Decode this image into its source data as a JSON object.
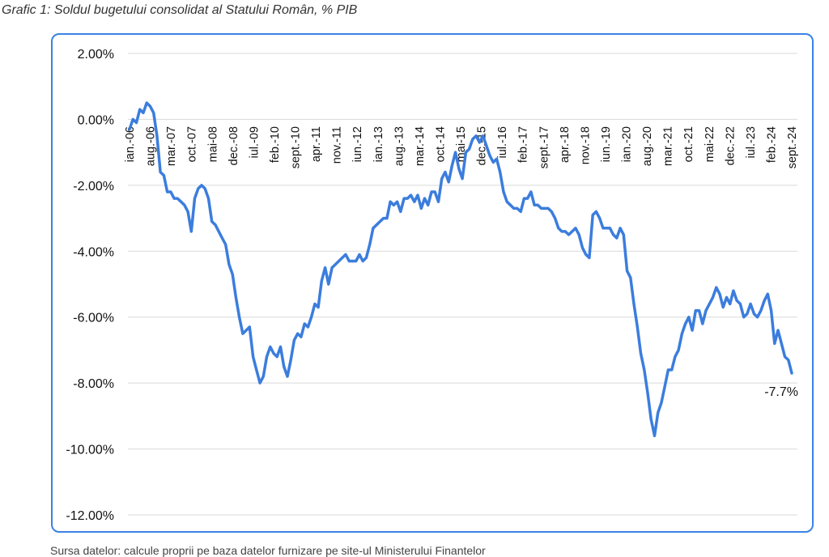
{
  "caption": "Grafic 1: Soldul bugetului consolidat al Statului Român, % PIB",
  "source": "Sursa datelor: calcule proprii pe baza datelor furnizare pe site-ul Ministerului Finantelor",
  "colors": {
    "line": "#3b7ddd",
    "frame": "#3b82e6",
    "grid": "#d9d9d9"
  },
  "chart_data": {
    "type": "line",
    "title": "Grafic 1: Soldul bugetului consolidat al Statului Român, % PIB",
    "ylim": [
      -12,
      2
    ],
    "yticks": [
      2,
      0,
      -2,
      -4,
      -6,
      -8,
      -10,
      -12
    ],
    "ytick_labels": [
      "2.00%",
      "0.00%",
      "-2.00%",
      "-4.00%",
      "-6.00%",
      "-8.00%",
      "-10.00%",
      "-12.00%"
    ],
    "grid": "horizontal",
    "x_tick_labels": [
      "ian.-06",
      "aug.-06",
      "mar.-07",
      "oct.-07",
      "mai-08",
      "dec.-08",
      "iul.-09",
      "feb.-10",
      "sept.-10",
      "apr.-11",
      "nov.-11",
      "iun.-12",
      "ian.-13",
      "aug.-13",
      "mar.-14",
      "oct.-14",
      "mai-15",
      "dec.-15",
      "iul.-16",
      "feb.-17",
      "sept.-17",
      "apr.-18",
      "nov.-18",
      "iun.-19",
      "ian.-20",
      "aug.-20",
      "mar.-21",
      "oct.-21",
      "mai-22",
      "dec.-22",
      "iul.-23",
      "feb.-24",
      "sept.-24"
    ],
    "annotation": "-7.7%",
    "series": [
      {
        "values": [
          -0.3,
          0.0,
          -0.1,
          0.3,
          0.2,
          0.5,
          0.4,
          0.2,
          -0.5,
          -1.6,
          -1.7,
          -2.2,
          -2.2,
          -2.4,
          -2.4,
          -2.5,
          -2.6,
          -2.8,
          -3.4,
          -2.4,
          -2.1,
          -2.0,
          -2.1,
          -2.4,
          -3.1,
          -3.2,
          -3.4,
          -3.6,
          -3.8,
          -4.4,
          -4.7,
          -5.4,
          -6.0,
          -6.5,
          -6.4,
          -6.3,
          -7.2,
          -7.6,
          -8.0,
          -7.8,
          -7.2,
          -6.9,
          -7.1,
          -7.2,
          -6.9,
          -7.5,
          -7.8,
          -7.3,
          -6.7,
          -6.5,
          -6.6,
          -6.2,
          -6.3,
          -6.0,
          -5.6,
          -5.7,
          -4.9,
          -4.5,
          -5.0,
          -4.5,
          -4.4,
          -4.3,
          -4.2,
          -4.1,
          -4.3,
          -4.3,
          -4.3,
          -4.1,
          -4.3,
          -4.2,
          -3.8,
          -3.3,
          -3.2,
          -3.1,
          -3.0,
          -3.0,
          -2.5,
          -2.6,
          -2.5,
          -2.8,
          -2.4,
          -2.4,
          -2.3,
          -2.5,
          -2.3,
          -2.7,
          -2.4,
          -2.6,
          -2.2,
          -2.2,
          -2.5,
          -1.8,
          -1.6,
          -1.9,
          -1.4,
          -1.0,
          -1.5,
          -1.8,
          -1.0,
          -0.9,
          -0.6,
          -0.5,
          -0.7,
          -0.5,
          -0.8,
          -1.1,
          -1.3,
          -1.2,
          -1.6,
          -2.2,
          -2.5,
          -2.6,
          -2.7,
          -2.7,
          -2.8,
          -2.4,
          -2.4,
          -2.2,
          -2.6,
          -2.6,
          -2.7,
          -2.7,
          -2.7,
          -2.8,
          -3.0,
          -3.3,
          -3.4,
          -3.4,
          -3.5,
          -3.4,
          -3.3,
          -3.5,
          -3.9,
          -4.1,
          -4.2,
          -2.9,
          -2.8,
          -3.0,
          -3.3,
          -3.3,
          -3.3,
          -3.5,
          -3.6,
          -3.3,
          -3.5,
          -4.6,
          -4.8,
          -5.6,
          -6.3,
          -7.1,
          -7.6,
          -8.3,
          -9.1,
          -9.6,
          -8.9,
          -8.6,
          -8.1,
          -7.6,
          -7.6,
          -7.2,
          -7.0,
          -6.5,
          -6.2,
          -6.0,
          -6.4,
          -5.8,
          -5.8,
          -6.2,
          -5.8,
          -5.6,
          -5.4,
          -5.1,
          -5.3,
          -5.7,
          -5.4,
          -5.6,
          -5.2,
          -5.5,
          -5.6,
          -6.0,
          -5.9,
          -5.6,
          -5.9,
          -6.0,
          -5.8,
          -5.5,
          -5.3,
          -5.8,
          -6.8,
          -6.4,
          -6.8,
          -7.2,
          -7.3,
          -7.7
        ]
      }
    ]
  }
}
